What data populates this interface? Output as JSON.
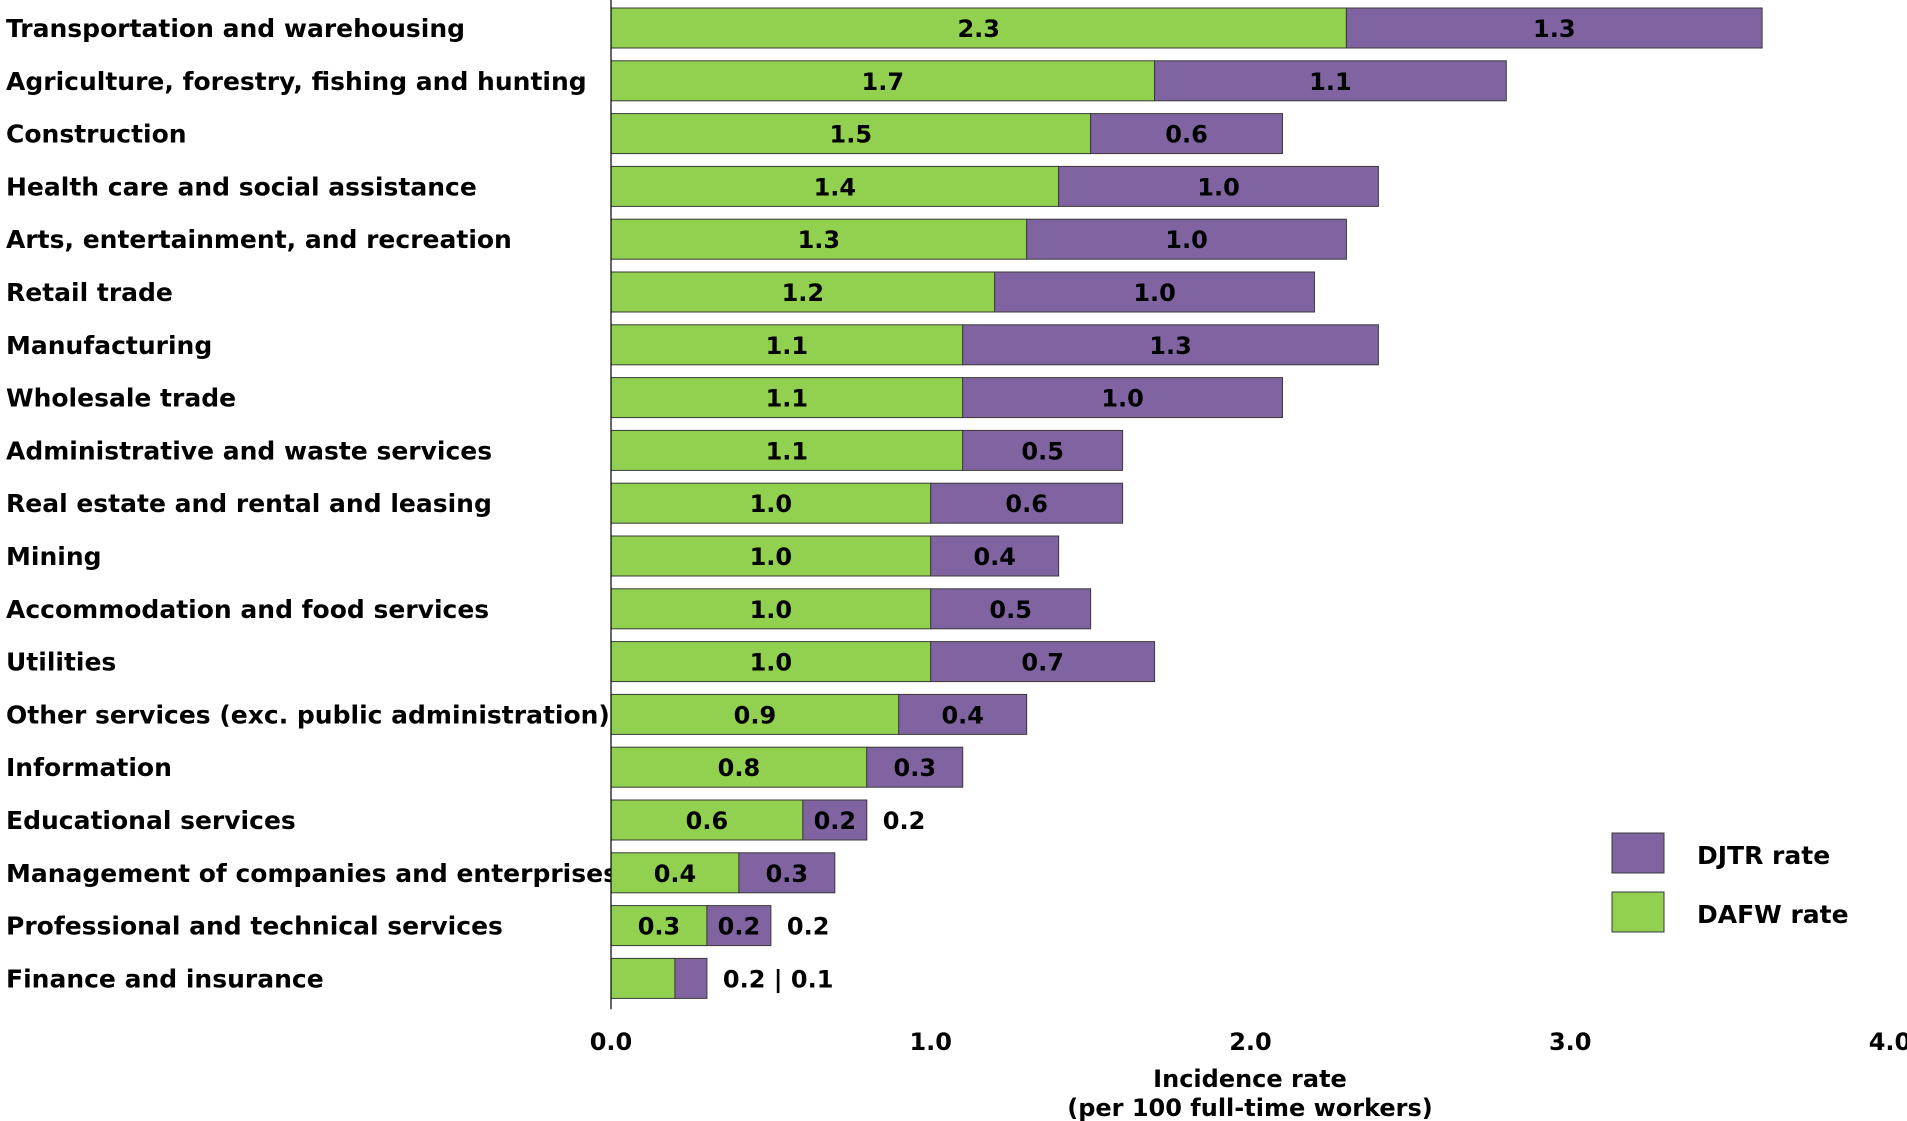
{
  "chart_data": {
    "type": "bar",
    "orientation": "horizontal",
    "stacked": true,
    "categories": [
      "Transportation and warehousing",
      "Agriculture, forestry, fishing and hunting",
      "Construction",
      "Health care and social assistance",
      "Arts, entertainment, and recreation",
      "Retail trade",
      "Manufacturing",
      "Wholesale trade",
      "Administrative and waste services",
      "Real estate and rental and leasing",
      "Mining",
      "Accommodation and food services",
      "Utilities",
      "Other services (exc. public administration)",
      "Information",
      "Educational services",
      "Management of companies and enterprises",
      "Professional and technical services",
      "Finance and insurance"
    ],
    "series": [
      {
        "name": "DAFW rate",
        "color": "#92d050",
        "values": [
          2.3,
          1.7,
          1.5,
          1.4,
          1.3,
          1.2,
          1.1,
          1.1,
          1.1,
          1.0,
          1.0,
          1.0,
          1.0,
          0.9,
          0.8,
          0.6,
          0.4,
          0.3,
          0.2
        ],
        "labels": [
          "2.3",
          "1.7",
          "1.5",
          "1.4",
          "1.3",
          "1.2",
          "1.1",
          "1.1",
          "1.1",
          "1.0",
          "1.0",
          "1.0",
          "1.0",
          "0.9",
          "0.8",
          "0.6",
          "0.4",
          "0.3",
          ""
        ]
      },
      {
        "name": "DJTR rate",
        "color": "#8064a2",
        "values": [
          1.3,
          1.1,
          0.6,
          1.0,
          1.0,
          1.0,
          1.3,
          1.0,
          0.5,
          0.6,
          0.4,
          0.5,
          0.7,
          0.4,
          0.3,
          0.2,
          0.3,
          0.2,
          0.1
        ],
        "labels": [
          "1.3",
          "1.1",
          "0.6",
          "1.0",
          "1.0",
          "1.0",
          "1.3",
          "1.0",
          "0.5",
          "0.6",
          "0.4",
          "0.5",
          "0.7",
          "0.4",
          "0.3",
          "0.2",
          "0.3",
          "0.2",
          ""
        ]
      }
    ],
    "outside_labels": {
      "15": "0.2",
      "17": "0.2",
      "18": "0.2 | 0.1"
    },
    "xlim": [
      0,
      4
    ],
    "xticks": [
      "0.0",
      "1.0",
      "2.0",
      "3.0",
      "4.0"
    ],
    "xlabel_line1": "Incidence rate",
    "xlabel_line2": "(per 100 full-time workers)",
    "legend": [
      {
        "label": "DJTR rate",
        "color": "#8064a2"
      },
      {
        "label": "DAFW rate",
        "color": "#92d050"
      }
    ],
    "legend_position": "bottom-right",
    "grid": false
  }
}
